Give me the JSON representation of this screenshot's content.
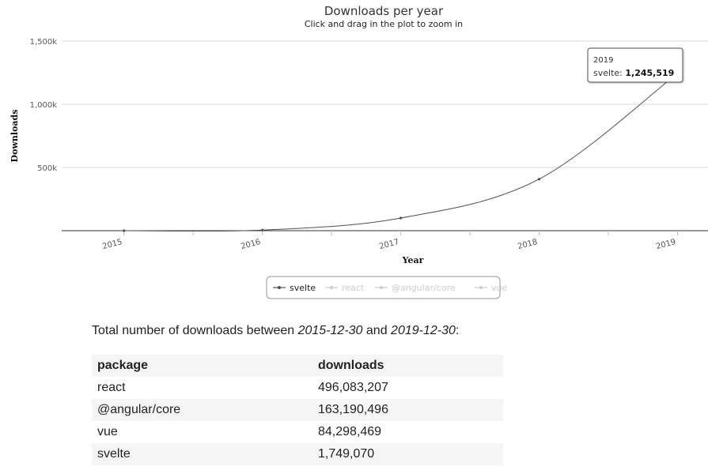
{
  "chart_data": {
    "type": "line",
    "title": "Downloads per year",
    "subtitle": "Click and drag in the plot to zoom in",
    "xlabel": "Year",
    "ylabel": "Downloads",
    "x": [
      "2015",
      "2016",
      "2017",
      "2018",
      "2019"
    ],
    "ylim": [
      0,
      1500000
    ],
    "yticks": [
      "1,500k",
      "1,000k",
      "500k"
    ],
    "grid": true,
    "legend_position": "bottom",
    "series": [
      {
        "name": "svelte",
        "visible": true,
        "color": "#5a4a52",
        "points": [
          [
            2015.0,
            0
          ],
          [
            2016.0,
            5000
          ],
          [
            2017.0,
            100000
          ],
          [
            2018.0,
            408000
          ],
          [
            2019.0,
            1245519
          ]
        ]
      },
      {
        "name": "react",
        "visible": false,
        "color": "#cccccc",
        "points": []
      },
      {
        "name": "@angular/core",
        "visible": false,
        "color": "#cccccc",
        "points": []
      },
      {
        "name": "vue",
        "visible": false,
        "color": "#cccccc",
        "points": []
      }
    ],
    "tooltip": {
      "category": "2019",
      "series": "svelte",
      "value_label": "1,245,519"
    }
  },
  "summary": {
    "prefix": "Total number of downloads between ",
    "start": "2015-12-30",
    "middle": " and ",
    "end": "2019-12-30",
    "suffix": ":"
  },
  "table": {
    "headers": [
      "package",
      "downloads"
    ],
    "rows": [
      [
        "react",
        "496,083,207"
      ],
      [
        "@angular/core",
        "163,190,496"
      ],
      [
        "vue",
        "84,298,469"
      ],
      [
        "svelte",
        "1,749,070"
      ]
    ]
  }
}
